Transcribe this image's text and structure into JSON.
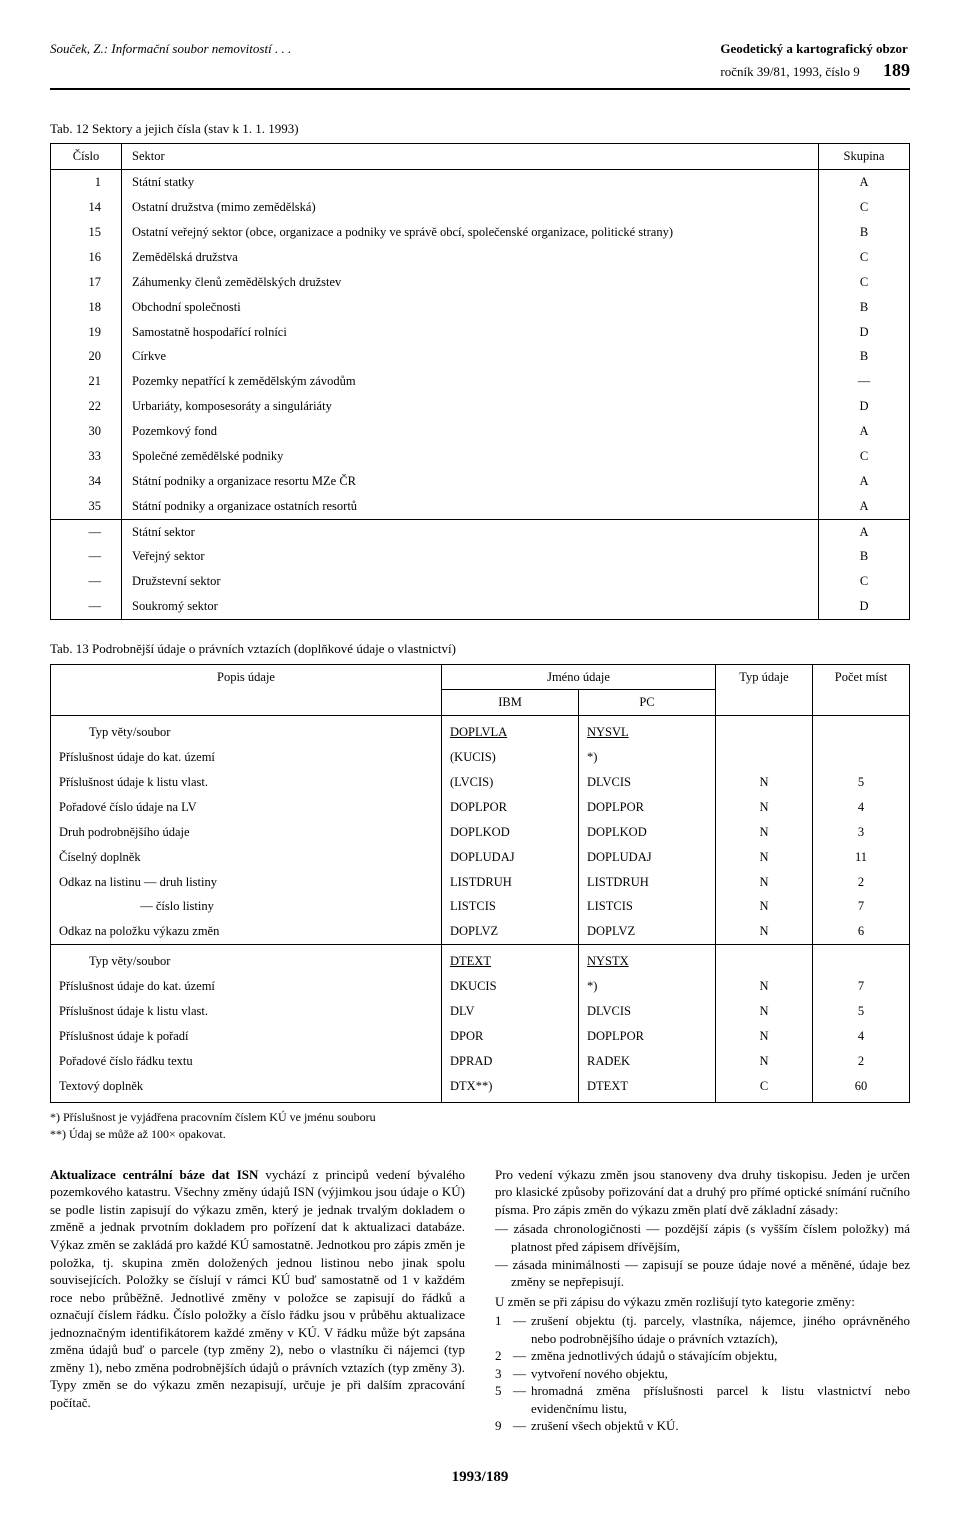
{
  "header": {
    "left": "Souček, Z.: Informační soubor nemovitostí . . .",
    "right_bold": "Geodetický a kartografický obzor",
    "right_line2": "ročník 39/81, 1993, číslo 9",
    "page_number": "189"
  },
  "table12": {
    "caption": "Tab. 12 Sektory a jejich čísla (stav k 1. 1. 1993)",
    "headers": {
      "cislo": "Číslo",
      "sektor": "Sektor",
      "skupina": "Skupina"
    },
    "rows_a": [
      {
        "c": "1",
        "s": "Státní statky",
        "g": "A"
      },
      {
        "c": "14",
        "s": "Ostatní družstva (mimo zemědělská)",
        "g": "C"
      },
      {
        "c": "15",
        "s": "Ostatní veřejný sektor (obce, organizace a podniky ve správě obcí, společenské organizace, politické strany)",
        "g": "B"
      },
      {
        "c": "16",
        "s": "Zemědělská družstva",
        "g": "C"
      },
      {
        "c": "17",
        "s": "Záhumenky členů zemědělských družstev",
        "g": "C"
      },
      {
        "c": "18",
        "s": "Obchodní společnosti",
        "g": "B"
      },
      {
        "c": "19",
        "s": "Samostatně hospodařící rolníci",
        "g": "D"
      },
      {
        "c": "20",
        "s": "Církve",
        "g": "B"
      },
      {
        "c": "21",
        "s": "Pozemky nepatřící k zemědělským závodům",
        "g": "—"
      },
      {
        "c": "22",
        "s": "Urbariáty, komposesoráty a singuláriáty",
        "g": "D"
      },
      {
        "c": "30",
        "s": "Pozemkový fond",
        "g": "A"
      },
      {
        "c": "33",
        "s": "Společné zemědělské podniky",
        "g": "C"
      },
      {
        "c": "34",
        "s": "Státní podniky a organizace resortu MZe ČR",
        "g": "A"
      },
      {
        "c": "35",
        "s": "Státní podniky a organizace ostatních resortů",
        "g": "A"
      }
    ],
    "rows_b": [
      {
        "c": "—",
        "s": "Státní sektor",
        "g": "A"
      },
      {
        "c": "—",
        "s": "Veřejný sektor",
        "g": "B"
      },
      {
        "c": "—",
        "s": "Družstevní sektor",
        "g": "C"
      },
      {
        "c": "—",
        "s": "Soukromý sektor",
        "g": "D"
      }
    ]
  },
  "table13": {
    "caption": "Tab. 13 Podrobnější údaje o právních vztazích (doplňkové údaje o vlastnictví)",
    "headers": {
      "popis": "Popis údaje",
      "jmeno": "Jméno údaje",
      "ibm": "IBM",
      "pc": "PC",
      "typ": "Typ údaje",
      "pocet": "Počet míst"
    },
    "section1_title": "Typ věty/soubor",
    "section1": [
      {
        "popis": "",
        "ibm": "DOPLVLA",
        "ibm_u": true,
        "pc": "NYSVL",
        "pc_u": true,
        "typ": "",
        "pocet": ""
      },
      {
        "popis": "Příslušnost údaje do kat. území",
        "ibm": "(KUCIS)",
        "pc": "*)",
        "typ": "",
        "pocet": ""
      },
      {
        "popis": "Příslušnost údaje k listu vlast.",
        "ibm": "(LVCIS)",
        "pc": "DLVCIS",
        "typ": "N",
        "pocet": "5"
      },
      {
        "popis": "Pořadové číslo údaje na LV",
        "ibm": "DOPLPOR",
        "pc": "DOPLPOR",
        "typ": "N",
        "pocet": "4"
      },
      {
        "popis": "Druh podrobnějšího údaje",
        "ibm": "DOPLKOD",
        "pc": "DOPLKOD",
        "typ": "N",
        "pocet": "3"
      },
      {
        "popis": "Číselný doplněk",
        "ibm": "DOPLUDAJ",
        "pc": "DOPLUDAJ",
        "typ": "N",
        "pocet": "11"
      },
      {
        "popis": "Odkaz na listinu — druh listiny",
        "ibm": "LISTDRUH",
        "pc": "LISTDRUH",
        "typ": "N",
        "pocet": "2"
      },
      {
        "popis": "                          — číslo listiny",
        "ibm": "LISTCIS",
        "pc": "LISTCIS",
        "typ": "N",
        "pocet": "7"
      },
      {
        "popis": "Odkaz na položku výkazu změn",
        "ibm": "DOPLVZ",
        "pc": "DOPLVZ",
        "typ": "N",
        "pocet": "6"
      }
    ],
    "section2_title": "Typ věty/soubor",
    "section2": [
      {
        "popis": "",
        "ibm": "DTEXT",
        "ibm_u": true,
        "pc": "NYSTX",
        "pc_u": true,
        "typ": "",
        "pocet": ""
      },
      {
        "popis": "Příslušnost údaje do kat. území",
        "ibm": "DKUCIS",
        "pc": "*)",
        "typ": "N",
        "pocet": "7"
      },
      {
        "popis": "Příslušnost údaje k listu vlast.",
        "ibm": "DLV",
        "pc": "DLVCIS",
        "typ": "N",
        "pocet": "5"
      },
      {
        "popis": "Příslušnost údaje k pořadí",
        "ibm": "DPOR",
        "pc": "DOPLPOR",
        "typ": "N",
        "pocet": "4"
      },
      {
        "popis": "Pořadové číslo řádku textu",
        "ibm": "DPRAD",
        "pc": "RADEK",
        "typ": "N",
        "pocet": "2"
      },
      {
        "popis": "Textový doplněk",
        "ibm": "DTX**)",
        "pc": "DTEXT",
        "typ": "C",
        "pocet": "60"
      }
    ]
  },
  "footnotes": {
    "f1": "*) Příslušnost je vyjádřena pracovním číslem KÚ ve jménu souboru",
    "f2": "**) Údaj se může až 100× opakovat."
  },
  "body": {
    "left_p1_lead": "Aktualizace centrální báze dat ISN",
    "left_p1": " vychází z principů vedení bývalého pozemkového katastru. Všechny změny údajů ISN (výjimkou jsou údaje o KÚ) se podle listin zapisují do výkazu změn, který je jednak trvalým dokladem o změně a jednak prvotním dokladem pro pořízení dat k aktualizaci databáze. Výkaz změn se zakládá pro každé KÚ samostatně. Jednotkou pro zápis změn je položka, tj. skupina změn doložených jednou listinou nebo jinak spolu souvisejících. Položky se číslují v rámci KÚ buď samostatně od 1 v každém roce nebo průběžně. Jednotlivé změny v položce se zapisují do řádků a označují číslem řádku. Číslo položky a číslo řádku jsou v průběhu aktualizace jednoznačným identifikátorem každé změny v KÚ. V řádku může být zapsána změna údajů buď o parcele (typ změny 2), nebo o vlastníku či nájemci (typ změny 1), nebo změna podrobnějších údajů o právních vztazích (typ změny 3). Typy změn se do výkazu změn nezapisují, určuje je při dalším zpracování počítač.",
    "right_p1": "Pro vedení výkazu změn jsou stanoveny dva druhy tiskopisu. Jeden je určen pro klasické způsoby pořizování dat a druhý pro přímé optické snímání ručního písma. Pro zápis změn do výkazu změn platí dvě základní zásady:",
    "right_li1": "zásada chronologičnosti — pozdější zápis (s vyšším číslem položky) má platnost před zápisem dřívějším,",
    "right_li2": "zásada minimálnosti — zapisují se pouze údaje nové a měněné, údaje bez změny se nepřepisují.",
    "right_p2": "U změn se při zápisu do výkazu změn rozlišují tyto kategorie změny:",
    "cat1": "zrušení objektu (tj. parcely, vlastníka, nájemce, jiného oprávněného nebo podrobnějšího údaje o právních vztazích),",
    "cat2": "změna jednotlivých údajů o stávajícím objektu,",
    "cat3": "vytvoření nového objektu,",
    "cat5": "hromadná změna příslušnosti parcel k listu vlastnictví nebo evidenčnímu listu,",
    "cat9": "zrušení všech objektů v KÚ."
  },
  "bottom_page": "1993/189"
}
